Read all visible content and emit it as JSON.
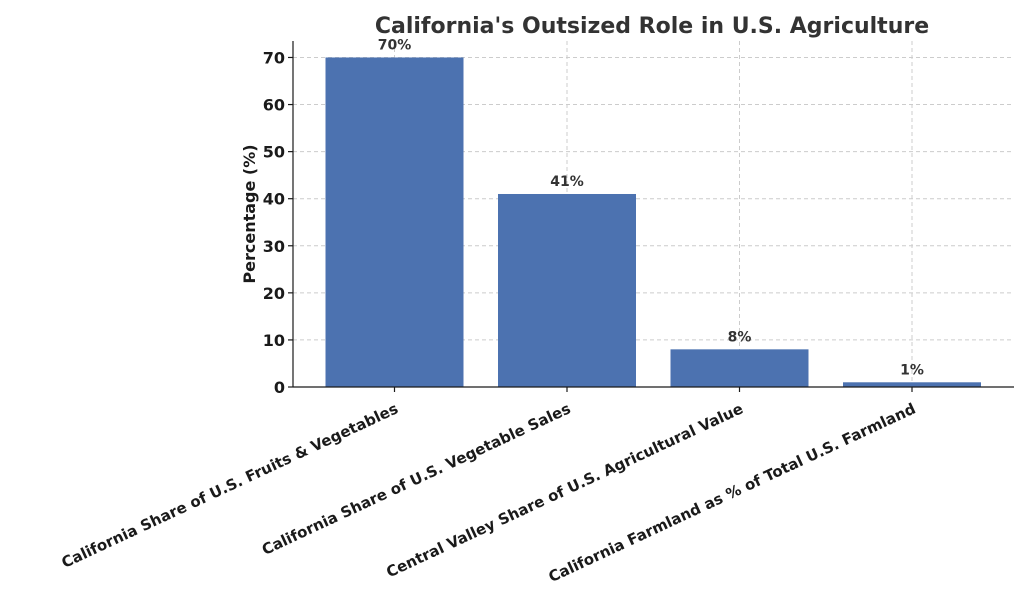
{
  "chart_data": {
    "type": "bar",
    "title": "California's Outsized Role in U.S. Agriculture",
    "xlabel": "",
    "ylabel": "Percentage (%)",
    "ylim": [
      0,
      73.5
    ],
    "yticks": [
      0,
      10,
      20,
      30,
      40,
      50,
      60,
      70
    ],
    "categories": [
      "California Share of U.S. Fruits & Vegetables",
      "California Share of U.S. Vegetable Sales",
      "Central Valley Share of U.S. Agricultural Value",
      "California Farmland as % of Total U.S. Farmland"
    ],
    "values": [
      70,
      41,
      8,
      1
    ],
    "data_labels": [
      "70%",
      "41%",
      "8%",
      "1%"
    ],
    "grid": true,
    "bar_color": "#4c72b0"
  }
}
